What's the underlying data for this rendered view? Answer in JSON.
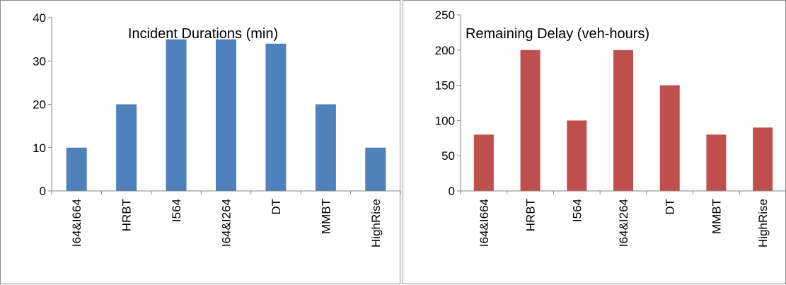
{
  "chart_data": [
    {
      "type": "bar",
      "title": "Incident Durations (min)",
      "xlabel": "",
      "ylabel": "",
      "categories": [
        "I64&I664",
        "HRBT",
        "I564",
        "I64&I264",
        "DT",
        "MMBT",
        "HighRise"
      ],
      "values": [
        10,
        20,
        35,
        35,
        34,
        20,
        10
      ],
      "ylim": [
        0,
        40
      ],
      "yticks": [
        0,
        10,
        20,
        30,
        40
      ],
      "ytick_labels": [
        "0",
        "10",
        "20",
        "30",
        "40"
      ],
      "grid": false,
      "legend": "none",
      "bar_color": "#4f81bd"
    },
    {
      "type": "bar",
      "title": "Remaining Delay (veh-hours)",
      "xlabel": "",
      "ylabel": "",
      "categories": [
        "I64&I664",
        "HRBT",
        "I564",
        "I64&I264",
        "DT",
        "MMBT",
        "HighRise"
      ],
      "values": [
        80,
        200,
        100,
        200,
        150,
        80,
        90
      ],
      "ylim": [
        0,
        250
      ],
      "yticks": [
        0,
        50,
        100,
        150,
        200,
        250
      ],
      "ytick_labels": [
        "0",
        "50",
        "100",
        "150",
        "200",
        "250"
      ],
      "grid": false,
      "legend": "none",
      "bar_color": "#c0504d"
    }
  ]
}
